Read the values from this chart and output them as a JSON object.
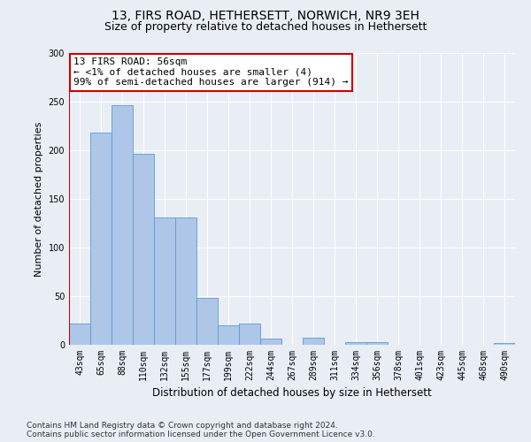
{
  "title1": "13, FIRS ROAD, HETHERSETT, NORWICH, NR9 3EH",
  "title2": "Size of property relative to detached houses in Hethersett",
  "xlabel": "Distribution of detached houses by size in Hethersett",
  "ylabel": "Number of detached properties",
  "bar_labels": [
    "43sqm",
    "65sqm",
    "88sqm",
    "110sqm",
    "132sqm",
    "155sqm",
    "177sqm",
    "199sqm",
    "222sqm",
    "244sqm",
    "267sqm",
    "289sqm",
    "311sqm",
    "334sqm",
    "356sqm",
    "378sqm",
    "401sqm",
    "423sqm",
    "445sqm",
    "468sqm",
    "490sqm"
  ],
  "bar_values": [
    22,
    218,
    246,
    196,
    131,
    131,
    48,
    20,
    22,
    6,
    0,
    7,
    0,
    3,
    3,
    0,
    0,
    0,
    0,
    0,
    2
  ],
  "bar_color": "#aec6e8",
  "bar_edge_color": "#5b9bd5",
  "annotation_line1": "13 FIRS ROAD: 56sqm",
  "annotation_line2": "← <1% of detached houses are smaller (4)",
  "annotation_line3": "99% of semi-detached houses are larger (914) →",
  "annotation_box_color": "#ffffff",
  "annotation_box_edgecolor": "#cc0000",
  "vline_color": "#cc0000",
  "ylim": [
    0,
    300
  ],
  "yticks": [
    0,
    50,
    100,
    150,
    200,
    250,
    300
  ],
  "background_color": "#e8eef4",
  "footer_text": "Contains HM Land Registry data © Crown copyright and database right 2024.\nContains public sector information licensed under the Open Government Licence v3.0.",
  "title1_fontsize": 10,
  "title2_fontsize": 9,
  "xlabel_fontsize": 8.5,
  "ylabel_fontsize": 8,
  "tick_fontsize": 7,
  "annotation_fontsize": 8,
  "footer_fontsize": 6.5
}
